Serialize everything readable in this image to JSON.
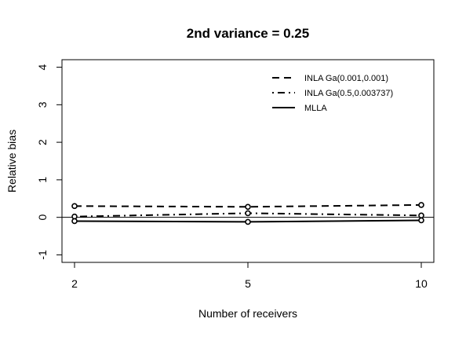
{
  "chart_data": {
    "type": "line",
    "title": "2nd variance = 0.25",
    "xlabel": "Number of receivers",
    "ylabel": "Relative bias",
    "x_categories": [
      "2",
      "5",
      "10"
    ],
    "y_ticks": [
      -1,
      0,
      1,
      2,
      3,
      4
    ],
    "y_tick_labels": [
      "-1",
      "0",
      "1",
      "2",
      "3",
      "4"
    ],
    "ylim": [
      -1.2,
      4.2
    ],
    "reference_line_y": 0,
    "grid": false,
    "legend_position": "top-right",
    "series": [
      {
        "name": "INLA Ga(0.001,0.001)",
        "style": "dashed",
        "values": [
          0.3,
          0.28,
          0.33
        ]
      },
      {
        "name": "INLA Ga(0.5,0.003737)",
        "style": "dotdash",
        "values": [
          0.02,
          0.11,
          0.05
        ]
      },
      {
        "name": "MLLA",
        "style": "solid",
        "values": [
          -0.1,
          -0.12,
          -0.08
        ]
      }
    ]
  }
}
